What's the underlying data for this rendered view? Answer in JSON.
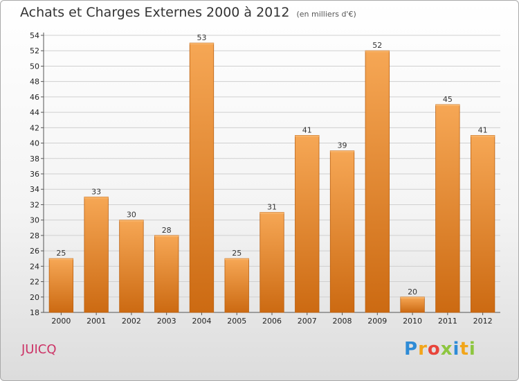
{
  "title": "Achats et Charges Externes 2000 à 2012",
  "subtitle": "(en milliers d'€)",
  "commune": "JUICQ",
  "logo": {
    "letters": [
      "P",
      "r",
      "o",
      "x",
      "i",
      "t",
      "i"
    ],
    "colors": [
      "#2e8bd6",
      "#f2a51a",
      "#e8443a",
      "#8dc63f",
      "#2e8bd6",
      "#f2a51a",
      "#8dc63f"
    ]
  },
  "colors": {
    "bar_top": "#f6a755",
    "bar_bottom": "#cc6a12",
    "bar_stroke": "#bb6010",
    "grid": "#cfcfcf"
  },
  "chart_data": {
    "type": "bar",
    "title": "Achats et Charges Externes 2000 à 2012",
    "subtitle": "(en milliers d'€)",
    "categories": [
      "2000",
      "2001",
      "2002",
      "2003",
      "2004",
      "2005",
      "2006",
      "2007",
      "2008",
      "2009",
      "2010",
      "2011",
      "2012"
    ],
    "values": [
      25,
      33,
      30,
      28,
      53,
      25,
      31,
      41,
      39,
      52,
      20,
      45,
      41
    ],
    "ylim": [
      18,
      54
    ],
    "yticks": [
      18,
      20,
      22,
      24,
      26,
      28,
      30,
      32,
      34,
      36,
      38,
      40,
      42,
      44,
      46,
      48,
      50,
      52,
      54
    ],
    "grid": true,
    "xlabel": "",
    "ylabel": ""
  }
}
